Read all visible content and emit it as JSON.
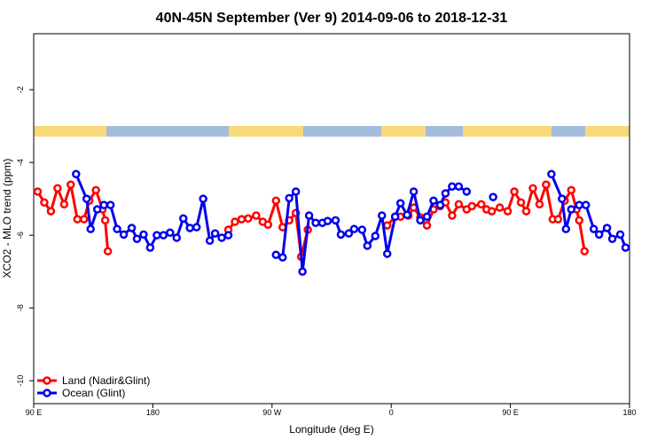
{
  "chart_data": {
    "type": "line",
    "title": "40N-45N September (Ver 9)   2014-09-06 to 2018-12-31",
    "x_label": "Longitude (deg E)",
    "y_label": "XCO2 - MLO trend (ppm)",
    "xlim": [
      90,
      540
    ],
    "xticks": [
      {
        "value": 90,
        "label": "90 E"
      },
      180,
      {
        "value": 270,
        "label": "90 W"
      },
      {
        "value": 360,
        "label": "0"
      },
      {
        "value": 450,
        "label": "90 E"
      },
      {
        "value": 540,
        "label": "180"
      }
    ],
    "ylim": [
      -10.63,
      -0.46
    ],
    "yticks": [
      -10,
      -8,
      -6,
      -4,
      -2
    ],
    "legend": "bottomleft",
    "series": [
      {
        "name": "Land (Nadir&Glint)",
        "color": "#ff0000",
        "x": [
          93,
          98,
          103,
          108,
          113,
          118,
          123,
          128,
          132,
          137,
          142,
          144,
          146,
          null,
          237,
          242,
          247,
          252,
          258,
          263,
          267,
          273,
          278,
          283,
          288,
          292,
          297,
          null,
          357,
          363,
          367,
          373,
          377,
          382,
          387,
          392,
          397,
          401,
          406,
          411,
          417,
          421,
          428,
          432,
          436,
          442,
          448,
          453,
          458,
          462,
          467,
          472,
          477,
          482,
          486,
          491,
          496,
          500,
          502,
          506
        ],
        "values": [
          -4.8,
          -5.1,
          -5.34,
          -4.71,
          -5.15,
          -4.61,
          -5.56,
          -5.56,
          -5.05,
          -4.76,
          -5.29,
          -5.59,
          -6.44,
          null,
          -5.85,
          -5.63,
          -5.56,
          -5.54,
          -5.46,
          -5.63,
          -5.71,
          -5.05,
          -5.78,
          -5.59,
          -5.39,
          -6.59,
          -5.85,
          null,
          -5.73,
          -5.49,
          -5.49,
          -5.46,
          -5.24,
          -5.51,
          -5.73,
          -5.29,
          -5.2,
          -5.1,
          -5.46,
          -5.15,
          -5.29,
          -5.2,
          -5.15,
          -5.29,
          -5.34,
          -5.24,
          -5.34,
          -4.8,
          -5.1,
          -5.34,
          -4.71,
          -5.15,
          -4.61,
          -5.56,
          -5.56,
          -5.05,
          -4.76,
          -5.29,
          -5.59,
          -6.44
        ]
      },
      {
        "name": "Ocean (Glint)",
        "color": "#0000ee",
        "x": [
          122,
          130,
          133,
          138,
          143,
          148,
          153,
          158,
          164,
          168,
          173,
          178,
          183,
          188,
          193,
          198,
          203,
          208,
          213,
          218,
          223,
          227,
          232,
          237,
          null,
          273,
          278,
          283,
          288,
          293,
          298,
          303,
          308,
          312,
          318,
          322,
          328,
          332,
          338,
          342,
          348,
          353,
          357,
          363,
          367,
          372,
          377,
          382,
          387,
          392,
          397,
          401,
          406,
          411,
          417,
          null,
          437,
          null,
          481,
          489,
          492,
          496,
          502,
          507,
          513,
          517,
          523,
          527,
          533,
          537
        ],
        "values": [
          -4.32,
          -5.0,
          -5.83,
          -5.29,
          -5.17,
          -5.17,
          -5.83,
          -5.98,
          -5.8,
          -6.1,
          -5.98,
          -6.34,
          -6.0,
          -6.0,
          -5.93,
          -6.07,
          -5.54,
          -5.8,
          -5.78,
          -5.0,
          -6.15,
          -5.95,
          -6.07,
          -6.0,
          null,
          -6.54,
          -6.61,
          -4.98,
          -4.8,
          -7.0,
          -5.46,
          -5.66,
          -5.66,
          -5.61,
          -5.59,
          -5.98,
          -5.95,
          -5.83,
          -5.85,
          -6.29,
          -6.02,
          -5.46,
          -6.51,
          -5.49,
          -5.12,
          -5.44,
          -4.8,
          -5.59,
          -5.49,
          -5.05,
          -5.17,
          -4.85,
          -4.66,
          -4.66,
          -4.8,
          null,
          -4.95,
          null,
          -4.32,
          -5.0,
          -5.83,
          -5.29,
          -5.17,
          -5.17,
          -5.83,
          -5.98,
          -5.8,
          -6.1,
          -5.98,
          -6.34
        ]
      }
    ]
  }
}
